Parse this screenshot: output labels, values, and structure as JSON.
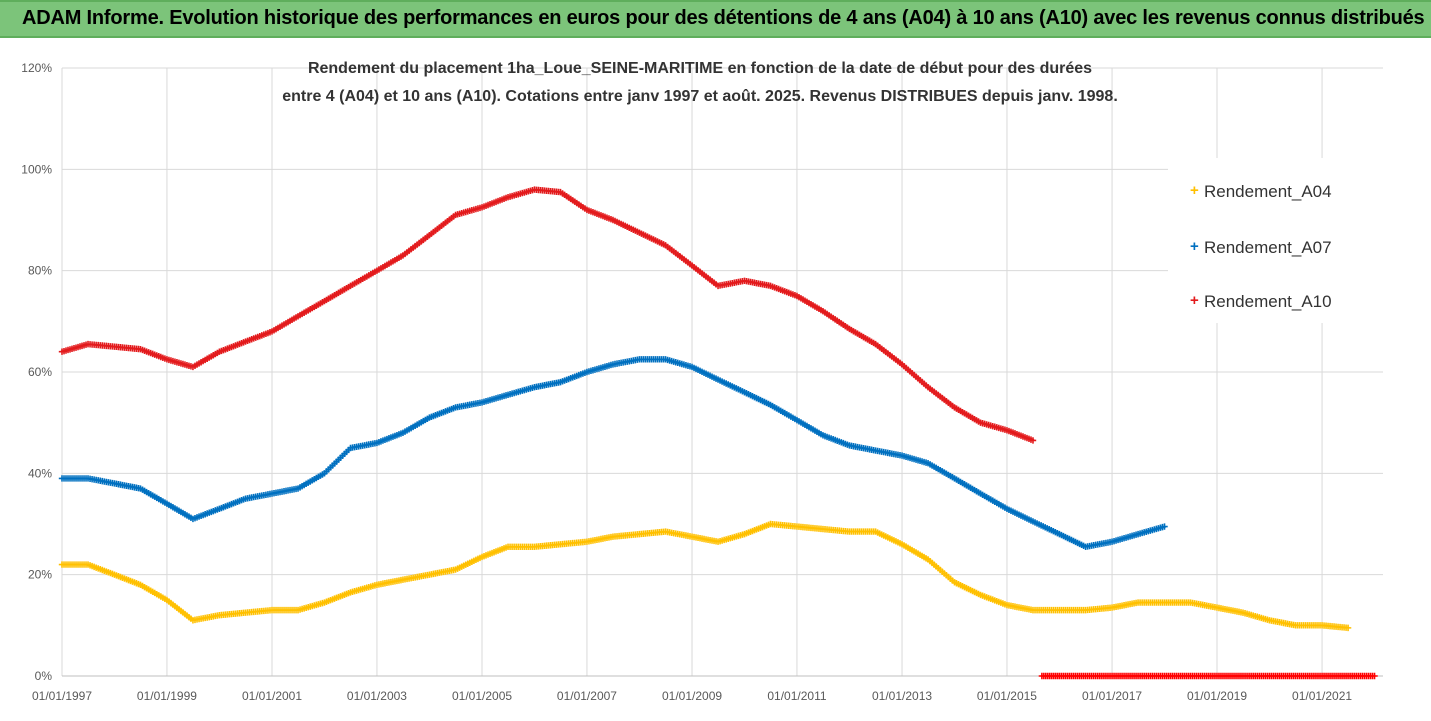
{
  "header": {
    "title": "ADAM Informe. Evolution historique des performances en euros pour des détentions de 4 ans (A04) à 10 ans (A10) avec les revenus connus distribués",
    "background": "#7cc47a"
  },
  "chart_data": {
    "type": "scatter",
    "subtitle_line1": "Rendement du placement 1ha_Loue_SEINE-MARITIME  en fonction de la date de début pour des durées",
    "subtitle_line2": "entre 4 (A04) et 10 ans (A10). Cotations entre janv 1997 et août. 2025. Revenus DISTRIBUES depuis janv. 1998.",
    "xlabel": "",
    "ylabel": "",
    "ylim": [
      0,
      1.2
    ],
    "y_ticks": [
      "0%",
      "20%",
      "40%",
      "60%",
      "80%",
      "100%",
      "120%"
    ],
    "x_ticks": [
      "01/01/1997",
      "01/01/1999",
      "01/01/2001",
      "01/01/2003",
      "01/01/2005",
      "01/01/2007",
      "01/01/2009",
      "01/01/2011",
      "01/01/2013",
      "01/01/2015",
      "01/01/2017",
      "01/01/2019",
      "01/01/2021"
    ],
    "xlim": [
      "1997-01-01",
      "2022-03-01"
    ],
    "grid": true,
    "legend_position": "right",
    "series": [
      {
        "name": "Rendement_A04",
        "color": "#ffc000",
        "x": [
          "1997-01-01",
          "1997-07-01",
          "1998-01-01",
          "1998-07-01",
          "1999-01-01",
          "1999-07-01",
          "2000-01-01",
          "2000-07-01",
          "2001-01-01",
          "2001-07-01",
          "2002-01-01",
          "2002-07-01",
          "2003-01-01",
          "2003-07-01",
          "2004-01-01",
          "2004-07-01",
          "2005-01-01",
          "2005-07-01",
          "2006-01-01",
          "2006-07-01",
          "2007-01-01",
          "2007-07-01",
          "2008-01-01",
          "2008-07-01",
          "2009-01-01",
          "2009-07-01",
          "2010-01-01",
          "2010-07-01",
          "2011-01-01",
          "2011-07-01",
          "2012-01-01",
          "2012-07-01",
          "2013-01-01",
          "2013-07-01",
          "2014-01-01",
          "2014-07-01",
          "2015-01-01",
          "2015-07-01",
          "2016-01-01",
          "2016-07-01",
          "2017-01-01",
          "2017-07-01",
          "2018-01-01",
          "2018-07-01",
          "2019-01-01",
          "2019-07-01",
          "2020-01-01",
          "2020-07-01",
          "2021-01-01",
          "2021-07-01"
        ],
        "values": [
          0.22,
          0.22,
          0.2,
          0.18,
          0.15,
          0.11,
          0.12,
          0.125,
          0.13,
          0.13,
          0.145,
          0.165,
          0.18,
          0.19,
          0.2,
          0.21,
          0.235,
          0.255,
          0.255,
          0.26,
          0.265,
          0.275,
          0.28,
          0.285,
          0.275,
          0.265,
          0.28,
          0.3,
          0.295,
          0.29,
          0.285,
          0.285,
          0.26,
          0.23,
          0.185,
          0.16,
          0.14,
          0.13,
          0.13,
          0.13,
          0.135,
          0.145,
          0.145,
          0.145,
          0.135,
          0.125,
          0.11,
          0.1,
          0.1,
          0.095
        ]
      },
      {
        "name": "Rendement_A07",
        "color": "#0070c0",
        "x": [
          "1997-01-01",
          "1997-07-01",
          "1998-01-01",
          "1998-07-01",
          "1999-01-01",
          "1999-07-01",
          "2000-01-01",
          "2000-07-01",
          "2001-01-01",
          "2001-07-01",
          "2002-01-01",
          "2002-07-01",
          "2003-01-01",
          "2003-07-01",
          "2004-01-01",
          "2004-07-01",
          "2005-01-01",
          "2005-07-01",
          "2006-01-01",
          "2006-07-01",
          "2007-01-01",
          "2007-07-01",
          "2008-01-01",
          "2008-07-01",
          "2009-01-01",
          "2009-07-01",
          "2010-01-01",
          "2010-07-01",
          "2011-01-01",
          "2011-07-01",
          "2012-01-01",
          "2012-07-01",
          "2013-01-01",
          "2013-07-01",
          "2014-01-01",
          "2014-07-01",
          "2015-01-01",
          "2015-07-01",
          "2016-01-01",
          "2016-07-01",
          "2017-01-01",
          "2017-07-01",
          "2018-01-01"
        ],
        "values": [
          0.39,
          0.39,
          0.38,
          0.37,
          0.34,
          0.31,
          0.33,
          0.35,
          0.36,
          0.37,
          0.4,
          0.45,
          0.46,
          0.48,
          0.51,
          0.53,
          0.54,
          0.555,
          0.57,
          0.58,
          0.6,
          0.615,
          0.625,
          0.625,
          0.61,
          0.585,
          0.56,
          0.535,
          0.505,
          0.475,
          0.455,
          0.445,
          0.435,
          0.42,
          0.39,
          0.36,
          0.33,
          0.305,
          0.28,
          0.255,
          0.265,
          0.28,
          0.295
        ]
      },
      {
        "name": "Rendement_A10",
        "color": "#e31a1c",
        "x": [
          "1997-01-01",
          "1997-07-01",
          "1998-01-01",
          "1998-07-01",
          "1999-01-01",
          "1999-07-01",
          "2000-01-01",
          "2000-07-01",
          "2001-01-01",
          "2001-07-01",
          "2002-01-01",
          "2002-07-01",
          "2003-01-01",
          "2003-07-01",
          "2004-01-01",
          "2004-07-01",
          "2005-01-01",
          "2005-07-01",
          "2006-01-01",
          "2006-07-01",
          "2007-01-01",
          "2007-07-01",
          "2008-01-01",
          "2008-07-01",
          "2009-01-01",
          "2009-07-01",
          "2010-01-01",
          "2010-07-01",
          "2011-01-01",
          "2011-07-01",
          "2012-01-01",
          "2012-07-01",
          "2013-01-01",
          "2013-07-01",
          "2014-01-01",
          "2014-07-01",
          "2015-01-01",
          "2015-07-01"
        ],
        "values": [
          0.64,
          0.655,
          0.65,
          0.645,
          0.625,
          0.61,
          0.64,
          0.66,
          0.68,
          0.71,
          0.74,
          0.77,
          0.8,
          0.83,
          0.87,
          0.91,
          0.925,
          0.945,
          0.96,
          0.955,
          0.92,
          0.9,
          0.875,
          0.85,
          0.81,
          0.77,
          0.78,
          0.77,
          0.75,
          0.72,
          0.685,
          0.655,
          0.615,
          0.57,
          0.53,
          0.5,
          0.485,
          0.465
        ]
      },
      {
        "name": "",
        "color": "#ff0000",
        "x": [
          "2015-09-01",
          "2016-01-01",
          "2016-07-01",
          "2017-01-01",
          "2017-07-01",
          "2018-01-01",
          "2018-07-01",
          "2019-01-01",
          "2019-07-01",
          "2020-01-01",
          "2020-07-01",
          "2021-01-01",
          "2021-07-01",
          "2022-01-01"
        ],
        "values": [
          0,
          0,
          0,
          0,
          0,
          0,
          0,
          0,
          0,
          0,
          0,
          0,
          0,
          0
        ]
      }
    ]
  }
}
